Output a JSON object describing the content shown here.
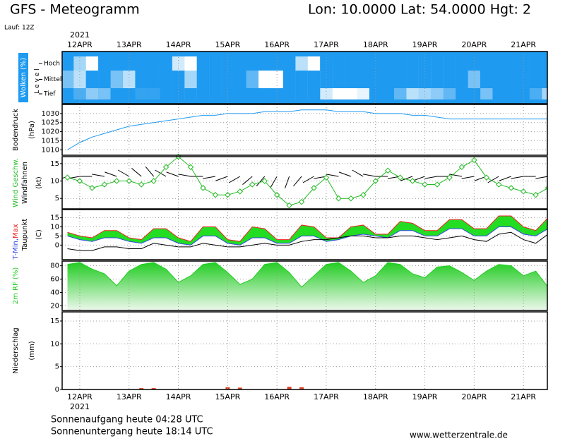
{
  "header": {
    "title": "GFS - Meteogramm",
    "location": "Lon: 10.0000 Lat: 54.0000 Hgt: 2",
    "run": "Lauf: 12Z"
  },
  "time_axis": {
    "year": "2021",
    "categories": [
      null,
      "12APR",
      null,
      null,
      null,
      "13APR",
      null,
      null,
      null,
      "14APR",
      null,
      null,
      null,
      "15APR",
      null,
      null,
      null,
      "16APR",
      null,
      null,
      null,
      "17APR",
      null,
      null,
      null,
      "18APR",
      null,
      null,
      null,
      "19APR",
      null,
      null,
      null,
      "20APR",
      null,
      null,
      null,
      "21APR",
      null,
      null
    ]
  },
  "chart_data": [
    {
      "type": "cloud",
      "ylabel": "Wolken (%)",
      "ylabel2": "L e v e l",
      "series": [
        {
          "name": "Hoch",
          "color": "#1e9af0",
          "values": [
            100,
            40,
            0,
            100,
            100,
            100,
            100,
            100,
            100,
            20,
            0,
            100,
            100,
            100,
            100,
            100,
            100,
            100,
            100,
            30,
            0,
            100,
            100,
            100,
            100,
            100,
            100,
            100,
            100,
            100,
            100,
            100,
            100,
            100,
            100,
            100,
            100,
            100,
            100,
            100
          ]
        },
        {
          "name": "Mittel",
          "color": "#1e9af0",
          "values": [
            60,
            30,
            100,
            100,
            60,
            30,
            100,
            100,
            100,
            100,
            40,
            100,
            100,
            100,
            100,
            70,
            0,
            0,
            100,
            100,
            100,
            100,
            100,
            100,
            100,
            100,
            100,
            100,
            100,
            100,
            100,
            100,
            100,
            60,
            100,
            100,
            100,
            100,
            100,
            100
          ]
        },
        {
          "name": "Tief",
          "color": "#1e9af0",
          "values": [
            100,
            80,
            50,
            60,
            100,
            100,
            90,
            90,
            100,
            100,
            100,
            100,
            100,
            100,
            100,
            100,
            100,
            100,
            100,
            100,
            100,
            20,
            0,
            0,
            10,
            100,
            100,
            70,
            30,
            40,
            50,
            70,
            100,
            100,
            60,
            100,
            100,
            100,
            80,
            40
          ]
        }
      ]
    },
    {
      "type": "line",
      "ylabel": "Bodendruck",
      "unit": "(hPa)",
      "ylim": [
        1007,
        1035
      ],
      "yticks": [
        1010,
        1015,
        1020,
        1025,
        1030
      ],
      "grid": true,
      "series": [
        {
          "color": "#1e9af0",
          "values": [
            1010,
            1014,
            1017,
            1019,
            1021,
            1023,
            1024,
            1025,
            1026,
            1027,
            1028,
            1029,
            1029,
            1030,
            1030,
            1030,
            1031,
            1031,
            1031,
            1032,
            1032,
            1032,
            1031,
            1031,
            1031,
            1030,
            1030,
            1030,
            1029,
            1029,
            1028,
            1027,
            1027,
            1027,
            1027,
            1027,
            1027,
            1027,
            1027,
            1027
          ]
        }
      ]
    },
    {
      "type": "wind",
      "unit": "(kt)",
      "ylim": [
        2,
        17
      ],
      "yticks": [
        5,
        10,
        15
      ],
      "grid": true,
      "series": [
        {
          "name": "Wind Geschw.",
          "color": "#22bb22",
          "values": [
            11,
            10,
            8,
            9,
            10,
            10,
            9,
            10,
            14,
            17,
            14,
            8,
            6,
            6,
            7,
            9,
            10,
            6,
            3,
            4,
            8,
            11,
            5,
            5,
            6,
            10,
            13,
            11,
            10,
            9,
            9,
            11,
            14,
            16,
            11,
            9,
            8,
            7,
            6,
            8
          ]
        },
        {
          "name": "Windfahnen",
          "color": "#000000",
          "values": [
            250,
            260,
            270,
            280,
            290,
            300,
            310,
            320,
            300,
            290,
            280,
            270,
            260,
            250,
            240,
            230,
            220,
            210,
            200,
            220,
            240,
            260,
            280,
            290,
            300,
            280,
            270,
            260,
            250,
            250,
            260,
            270,
            280,
            260,
            250,
            240,
            250,
            260,
            270,
            260
          ]
        }
      ]
    },
    {
      "type": "temperature",
      "unit": "(C)",
      "ylim": [
        -8,
        19.5
      ],
      "yticks": [
        0,
        5,
        10,
        15
      ],
      "grid": true,
      "band_color": "#22dd22",
      "series": [
        {
          "name": "T-Min,",
          "color": "#3344ee",
          "values": [
            5,
            3,
            2,
            4,
            4,
            2,
            1,
            4,
            4,
            1,
            0,
            5,
            5,
            1,
            0,
            4,
            4,
            1,
            1,
            5,
            5,
            2,
            3,
            5,
            6,
            5,
            4,
            8,
            8,
            5,
            5,
            9,
            9,
            5,
            5,
            10,
            10,
            6,
            5,
            9
          ]
        },
        {
          "name": "Max",
          "color": "#ee2222",
          "values": [
            7,
            5,
            4,
            8,
            8,
            4,
            3,
            9,
            9,
            4,
            2,
            10,
            10,
            3,
            2,
            10,
            9,
            3,
            3,
            11,
            10,
            4,
            4,
            10,
            11,
            6,
            6,
            13,
            12,
            8,
            8,
            14,
            14,
            9,
            9,
            16,
            16,
            10,
            8,
            15
          ]
        },
        {
          "name": "Taupunkt",
          "color": "#000000",
          "values": [
            -2,
            -3,
            -3,
            -1,
            -1,
            -2,
            -2,
            1,
            0,
            -1,
            -1,
            1,
            0,
            -1,
            -1,
            0,
            1,
            0,
            0,
            2,
            3,
            3,
            4,
            5,
            5,
            4,
            4,
            5,
            5,
            4,
            3,
            4,
            5,
            3,
            2,
            6,
            7,
            3,
            1,
            6
          ]
        }
      ]
    },
    {
      "type": "area",
      "ylabel": "2m RF (%)",
      "ylim": [
        13,
        87
      ],
      "yticks": [
        20,
        40,
        60,
        80
      ],
      "grid": true,
      "color": "#22cc22",
      "values": [
        82,
        85,
        75,
        68,
        50,
        72,
        82,
        85,
        75,
        55,
        65,
        82,
        85,
        70,
        52,
        60,
        82,
        85,
        70,
        48,
        65,
        82,
        85,
        72,
        55,
        65,
        85,
        82,
        68,
        62,
        78,
        80,
        70,
        58,
        72,
        82,
        80,
        65,
        72,
        48
      ]
    },
    {
      "type": "bar",
      "ylabel": "Niederschlag",
      "unit": "(mm)",
      "ylim": [
        0,
        17
      ],
      "yticks": [
        0,
        5,
        10,
        15
      ],
      "grid": true,
      "color": "#dd4422",
      "values": [
        0,
        0,
        0,
        0,
        0,
        0,
        0.3,
        0.3,
        0,
        0,
        0,
        0,
        0,
        0.5,
        0.4,
        0,
        0,
        0,
        0.6,
        0.5,
        0,
        0,
        0,
        0,
        0,
        0,
        0,
        0,
        0,
        0,
        0,
        0,
        0,
        0,
        0,
        0,
        0,
        0,
        0,
        0
      ]
    }
  ],
  "footer": {
    "sunrise": "Sonnenaufgang heute 04:28 UTC",
    "sunset": "Sonnenuntergang heute 18:14 UTC",
    "website": "www.wetterzentrale.de"
  }
}
